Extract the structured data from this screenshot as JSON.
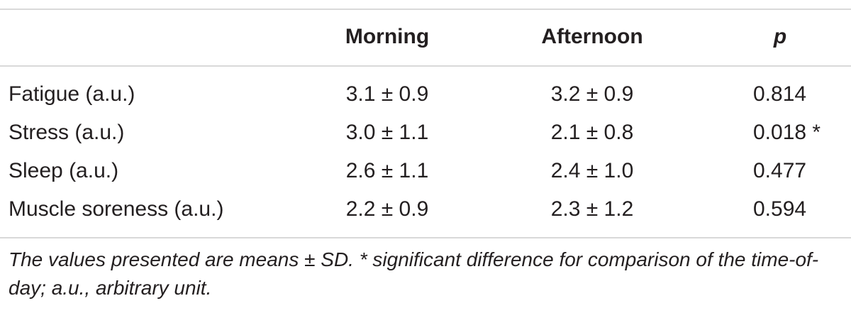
{
  "table": {
    "headers": {
      "label": "",
      "morning": "Morning",
      "afternoon": "Afternoon",
      "p": "p"
    },
    "rows": [
      {
        "label": "Fatigue (a.u.)",
        "morning": "3.1 ± 0.9",
        "afternoon": "3.2 ± 0.9",
        "p": "0.814"
      },
      {
        "label": "Stress (a.u.)",
        "morning": "3.0 ± 1.1",
        "afternoon": "2.1 ± 0.8",
        "p": "0.018 *"
      },
      {
        "label": "Sleep (a.u.)",
        "morning": "2.6 ± 1.1",
        "afternoon": "2.4 ± 1.0",
        "p": "0.477"
      },
      {
        "label": "Muscle soreness (a.u.)",
        "morning": "2.2 ± 0.9",
        "afternoon": "2.3 ± 1.2",
        "p": "0.594"
      }
    ],
    "footnote": "The values presented are means ± SD. * significant difference for comparison of the time-of-day; a.u., arbitrary unit."
  },
  "colors": {
    "text": "#231f20",
    "rule": "#d9d9d9",
    "background": "#ffffff"
  }
}
